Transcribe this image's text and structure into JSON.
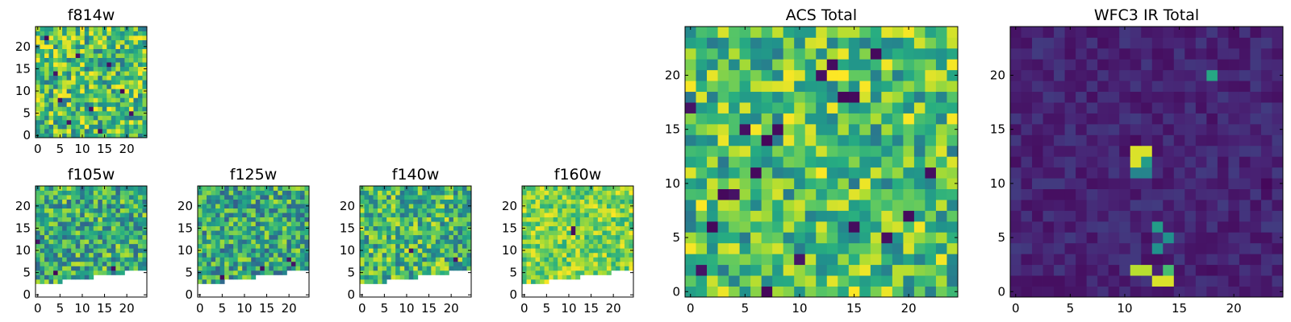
{
  "figure": {
    "description_free": true
  },
  "chart_data": [
    {
      "type": "heatmap",
      "title": "f814w",
      "colormap": "viridis",
      "grid": [
        25,
        25
      ],
      "xlim": [
        -0.5,
        24.5
      ],
      "ylim": [
        -0.5,
        24.5
      ],
      "xticks": [
        0,
        5,
        10,
        15,
        20
      ],
      "yticks": [
        0,
        5,
        10,
        15,
        20
      ],
      "value_range": [
        0,
        1
      ],
      "pattern": "noise",
      "base": 0.7,
      "amplitude": 0.32,
      "seed": 11,
      "dark_cells": [
        [
          7,
          3
        ],
        [
          12,
          6
        ],
        [
          19,
          10
        ],
        [
          4,
          14
        ],
        [
          9,
          18
        ],
        [
          2,
          22
        ],
        [
          16,
          16
        ],
        [
          21,
          5
        ],
        [
          5,
          8
        ],
        [
          14,
          1
        ]
      ],
      "masked_below": null
    },
    {
      "type": "heatmap",
      "title": "f105w",
      "colormap": "viridis",
      "grid": [
        25,
        25
      ],
      "xlim": [
        -0.5,
        24.5
      ],
      "ylim": [
        -0.5,
        24.5
      ],
      "xticks": [
        0,
        5,
        10,
        15,
        20
      ],
      "yticks": [
        0,
        5,
        10,
        15,
        20
      ],
      "value_range": [
        0,
        1
      ],
      "pattern": "noise",
      "base": 0.62,
      "amplitude": 0.3,
      "seed": 23,
      "dark_cells": [
        [
          4,
          5
        ],
        [
          17,
          6
        ],
        [
          0,
          12
        ]
      ],
      "masked_below": [
        [
          0,
          2
        ],
        [
          5,
          2
        ],
        [
          6,
          3
        ],
        [
          12,
          3
        ],
        [
          13,
          4
        ],
        [
          19,
          4
        ],
        [
          20,
          5
        ],
        [
          24,
          5
        ]
      ]
    },
    {
      "type": "heatmap",
      "title": "f125w",
      "colormap": "viridis",
      "grid": [
        25,
        25
      ],
      "xlim": [
        -0.5,
        24.5
      ],
      "ylim": [
        -0.5,
        24.5
      ],
      "xticks": [
        0,
        5,
        10,
        15,
        20
      ],
      "yticks": [
        0,
        5,
        10,
        15,
        20
      ],
      "value_range": [
        0,
        1
      ],
      "pattern": "noise",
      "base": 0.6,
      "amplitude": 0.3,
      "seed": 37,
      "dark_cells": [
        [
          5,
          4
        ],
        [
          14,
          6
        ],
        [
          20,
          8
        ],
        [
          21,
          7
        ]
      ],
      "masked_below": [
        [
          0,
          2
        ],
        [
          5,
          2
        ],
        [
          6,
          3
        ],
        [
          12,
          3
        ],
        [
          13,
          4
        ],
        [
          19,
          4
        ],
        [
          20,
          5
        ],
        [
          24,
          5
        ]
      ]
    },
    {
      "type": "heatmap",
      "title": "f140w",
      "colormap": "viridis",
      "grid": [
        25,
        25
      ],
      "xlim": [
        -0.5,
        24.5
      ],
      "ylim": [
        -0.5,
        24.5
      ],
      "xticks": [
        0,
        5,
        10,
        15,
        20
      ],
      "yticks": [
        0,
        5,
        10,
        15,
        20
      ],
      "value_range": [
        0,
        1
      ],
      "pattern": "noise",
      "base": 0.66,
      "amplitude": 0.3,
      "seed": 53,
      "dark_cells": [
        [
          11,
          10
        ],
        [
          21,
          8
        ]
      ],
      "masked_below": [
        [
          0,
          2
        ],
        [
          5,
          2
        ],
        [
          6,
          3
        ],
        [
          12,
          3
        ],
        [
          13,
          4
        ],
        [
          19,
          4
        ],
        [
          20,
          5
        ],
        [
          24,
          5
        ]
      ]
    },
    {
      "type": "heatmap",
      "title": "f160w",
      "colormap": "viridis",
      "grid": [
        25,
        25
      ],
      "xlim": [
        -0.5,
        24.5
      ],
      "ylim": [
        -0.5,
        24.5
      ],
      "xticks": [
        0,
        5,
        10,
        15,
        20
      ],
      "yticks": [
        0,
        5,
        10,
        15,
        20
      ],
      "value_range": [
        0,
        1
      ],
      "pattern": "noise",
      "base": 0.8,
      "amplitude": 0.2,
      "seed": 71,
      "dark_cells": [
        [
          11,
          14
        ],
        [
          11,
          15
        ]
      ],
      "masked_below": [
        [
          0,
          2
        ],
        [
          5,
          2
        ],
        [
          6,
          3
        ],
        [
          12,
          3
        ],
        [
          13,
          4
        ],
        [
          19,
          4
        ],
        [
          20,
          5
        ],
        [
          24,
          5
        ]
      ]
    },
    {
      "type": "heatmap",
      "title": "ACS Total",
      "colormap": "viridis",
      "grid": [
        25,
        25
      ],
      "xlim": [
        -0.5,
        24.5
      ],
      "ylim": [
        -0.5,
        24.5
      ],
      "xticks": [
        0,
        5,
        10,
        15,
        20
      ],
      "yticks": [
        0,
        5,
        10,
        15,
        20
      ],
      "value_range": [
        0,
        1
      ],
      "pattern": "noise",
      "base": 0.7,
      "amplitude": 0.3,
      "seed": 89,
      "dark_cells": [
        [
          0,
          17
        ],
        [
          3,
          9
        ],
        [
          4,
          9
        ],
        [
          5,
          15
        ],
        [
          8,
          15
        ],
        [
          12,
          20
        ],
        [
          14,
          18
        ],
        [
          15,
          18
        ],
        [
          20,
          7
        ],
        [
          2,
          6
        ],
        [
          7,
          14
        ],
        [
          13,
          21
        ],
        [
          18,
          5
        ],
        [
          10,
          3
        ],
        [
          6,
          11
        ],
        [
          22,
          11
        ],
        [
          17,
          22
        ],
        [
          1,
          2
        ],
        [
          15,
          6
        ],
        [
          7,
          0
        ]
      ],
      "masked_below": null
    },
    {
      "type": "heatmap",
      "title": "WFC3 IR Total",
      "colormap": "viridis",
      "grid": [
        25,
        25
      ],
      "xlim": [
        -0.5,
        24.5
      ],
      "ylim": [
        -0.5,
        24.5
      ],
      "xticks": [
        0,
        5,
        10,
        15,
        20
      ],
      "yticks": [
        0,
        5,
        10,
        15,
        20
      ],
      "value_range": [
        0,
        1
      ],
      "pattern": "faint",
      "base": 0.12,
      "amplitude": 0.07,
      "seed": 97,
      "bright_cells": [
        [
          11,
          13,
          0.95
        ],
        [
          12,
          13,
          0.95
        ],
        [
          11,
          12,
          0.95
        ],
        [
          12,
          12,
          0.55
        ],
        [
          11,
          11,
          0.45
        ],
        [
          12,
          11,
          0.45
        ],
        [
          18,
          20,
          0.6
        ],
        [
          13,
          6,
          0.55
        ],
        [
          14,
          5,
          0.5
        ],
        [
          13,
          4,
          0.5
        ],
        [
          11,
          2,
          0.9
        ],
        [
          12,
          2,
          0.9
        ],
        [
          13,
          1,
          0.95
        ],
        [
          14,
          1,
          0.95
        ],
        [
          14,
          2,
          0.7
        ]
      ],
      "dark_cells": [
        [
          10,
          14
        ],
        [
          11,
          14
        ],
        [
          2,
          8
        ],
        [
          4,
          9
        ],
        [
          23,
          10
        ],
        [
          5,
          6
        ],
        [
          18,
          2
        ]
      ],
      "masked_below": null
    }
  ]
}
